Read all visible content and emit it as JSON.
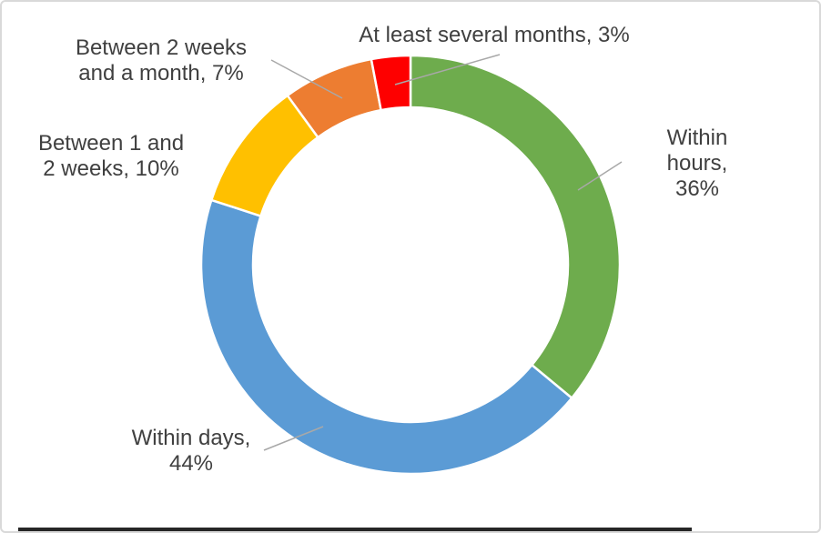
{
  "chart_data": {
    "type": "pie",
    "subtype": "donut",
    "title": "",
    "categories": [
      "Within hours",
      "Within days",
      "Between 1 and 2 weeks",
      "Between 2 weeks and a month",
      "At least several months"
    ],
    "values": [
      36,
      44,
      10,
      7,
      3
    ],
    "unit": "%",
    "colors": [
      "#6EAC4D",
      "#5B9BD5",
      "#FFC000",
      "#ED7D31",
      "#FE0000"
    ],
    "data_labels": [
      "Within hours,\n36%",
      "Within days,\n44%",
      "Between 1 and\n2 weeks, 10%",
      "Between 2 weeks\nand a month, 7%",
      "At least several months, 3%"
    ],
    "legend": "none",
    "label_position": "outside",
    "hole_ratio": 0.75,
    "start_angle_deg": 0,
    "direction": "clockwise",
    "label_color": "#404040",
    "leader_line_color": "#a8a8a8"
  },
  "frame": {
    "background": "#ffffff",
    "border_color": "#d9d9d9"
  }
}
